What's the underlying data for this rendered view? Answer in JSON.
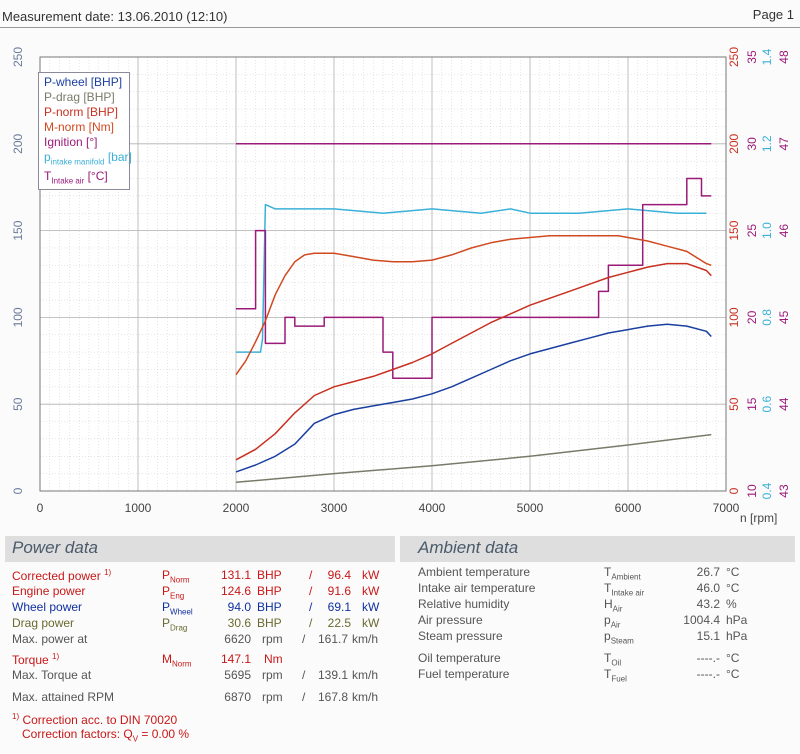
{
  "header": {
    "measurement_date": "Measurement date: 13.06.2010 (12:10)",
    "page": "Page 1"
  },
  "legend": {
    "p_wheel": "P-wheel [BHP]",
    "p_drag": "P-drag [BHP]",
    "p_norm": "P-norm [BHP]",
    "m_norm": "M-norm [Nm]",
    "ignition": "Ignition [°]",
    "intake_p_base": "p",
    "intake_p_sub": "intake manifold",
    "intake_p_unit": "[bar]",
    "intake_t_base": "T",
    "intake_t_sub": "Intake air",
    "intake_t_unit": "[°C]"
  },
  "colors": {
    "p_wheel": "#1a3fa0",
    "p_drag": "#7a7a6a",
    "p_norm": "#c83020",
    "m_norm": "#d04a20",
    "ignition": "#9a1a78",
    "intake_p": "#3ab0d8",
    "intake_t": "#9a1a78",
    "red_text": "#c81818"
  },
  "chart_data": {
    "type": "line",
    "x_label": "n [rpm]",
    "x_ticks": [
      "0",
      "1000",
      "2000",
      "3000",
      "4000",
      "5000",
      "6000",
      "7000"
    ],
    "xlim": [
      0,
      7000
    ],
    "left_axis": {
      "ticks": [
        "0",
        "50",
        "100",
        "150",
        "200",
        "250"
      ],
      "ylim": [
        0,
        250
      ]
    },
    "right_axes": [
      {
        "name": "M-norm [Nm]",
        "ticks": [
          "0",
          "50",
          "100",
          "150",
          "200",
          "250"
        ],
        "ylim": [
          0,
          250
        ]
      },
      {
        "name": "Ignition [°]",
        "ticks": [
          "10",
          "15",
          "20",
          "25",
          "30",
          "35"
        ],
        "ylim": [
          10,
          35
        ]
      },
      {
        "name": "p intake manifold [bar]",
        "ticks": [
          "0.4",
          "0.6",
          "0.8",
          "1.0",
          "1.2",
          "1.4"
        ],
        "ylim": [
          0.4,
          1.4
        ]
      },
      {
        "name": "T intake air [°C]",
        "ticks": [
          "43",
          "44",
          "45",
          "46",
          "47",
          "48"
        ],
        "ylim": [
          43,
          48
        ]
      }
    ],
    "grid": true,
    "legend_position": "top-left",
    "series": [
      {
        "name": "P-wheel [BHP]",
        "axis": "left",
        "x": [
          2000,
          2200,
          2400,
          2600,
          2800,
          3000,
          3200,
          3400,
          3600,
          3800,
          4000,
          4200,
          4400,
          4600,
          4800,
          5000,
          5200,
          5400,
          5600,
          5800,
          6000,
          6200,
          6400,
          6600,
          6800,
          6850
        ],
        "y": [
          11,
          15,
          20,
          27,
          39,
          44,
          47,
          49,
          51,
          53,
          56,
          60,
          65,
          70,
          75,
          79,
          82,
          85,
          88,
          91,
          93,
          95,
          96,
          95,
          92,
          89
        ]
      },
      {
        "name": "P-drag [BHP]",
        "axis": "left",
        "x": [
          2000,
          3000,
          4000,
          5000,
          6000,
          6850
        ],
        "y": [
          5,
          10,
          14.5,
          20,
          26.5,
          32.5
        ]
      },
      {
        "name": "P-norm [BHP]",
        "axis": "left",
        "x": [
          2000,
          2200,
          2400,
          2600,
          2800,
          3000,
          3200,
          3400,
          3600,
          3800,
          4000,
          4200,
          4400,
          4600,
          4800,
          5000,
          5200,
          5400,
          5600,
          5800,
          6000,
          6200,
          6400,
          6600,
          6800,
          6850
        ],
        "y": [
          18,
          24,
          33,
          45,
          55,
          60,
          63,
          66,
          70,
          74,
          79,
          85,
          91,
          97,
          102,
          107,
          111,
          115,
          119,
          123,
          126,
          129,
          131,
          131,
          127,
          124
        ]
      },
      {
        "name": "M-norm [Nm]",
        "axis": "right0",
        "x": [
          2000,
          2100,
          2200,
          2300,
          2400,
          2500,
          2600,
          2700,
          2800,
          2900,
          3000,
          3200,
          3400,
          3600,
          3800,
          4000,
          4200,
          4400,
          4600,
          4800,
          5000,
          5200,
          5400,
          5600,
          5800,
          5900,
          6000,
          6200,
          6400,
          6600,
          6800,
          6850
        ],
        "y": [
          67,
          75,
          86,
          98,
          113,
          124,
          132,
          136,
          137,
          137,
          137,
          135,
          133,
          132,
          132,
          133,
          136,
          140,
          143,
          145,
          146,
          147,
          147,
          147,
          147,
          147,
          146,
          144,
          141,
          138,
          131,
          130
        ]
      },
      {
        "name": "Ignition [°]",
        "axis": "right1",
        "x": [
          2000,
          2250,
          2250,
          2300,
          2300,
          2550,
          2550,
          2750,
          2750,
          3000,
          3000,
          3250,
          3250,
          3450,
          3450,
          3550,
          3550,
          3750,
          3750,
          3850,
          3850,
          3950,
          3950,
          4050,
          4050,
          5000,
          5000,
          5400,
          5400,
          5500,
          5500,
          5650,
          5650,
          5700,
          5700,
          5800,
          5800,
          5850,
          5850,
          5900,
          5900,
          6000,
          6000,
          6050,
          6050,
          6250,
          6250,
          6550,
          6550,
          6600,
          6600,
          6700,
          6700,
          6850
        ],
        "y": [
          30,
          30,
          30,
          30,
          30,
          30,
          30,
          30,
          30,
          30,
          30,
          30,
          30,
          30,
          30,
          30,
          30,
          30,
          30,
          30,
          30,
          30,
          30,
          30,
          30,
          30,
          30,
          30,
          30,
          30,
          30,
          30,
          30,
          30,
          30,
          30,
          30,
          30,
          30,
          30,
          30,
          30,
          30,
          30,
          30,
          30,
          30,
          30,
          30,
          30,
          30,
          30,
          30,
          30
        ]
      },
      {
        "name": "p intake manifold [bar]",
        "axis": "right2",
        "x": [
          2000,
          2250,
          2270,
          2300,
          2400,
          2600,
          3000,
          3500,
          4000,
          4500,
          4800,
          5000,
          5500,
          6000,
          6500,
          6800
        ],
        "y": [
          0.72,
          0.72,
          0.75,
          1.06,
          1.05,
          1.05,
          1.05,
          1.04,
          1.05,
          1.04,
          1.05,
          1.04,
          1.04,
          1.05,
          1.04,
          1.04
        ]
      },
      {
        "name": "T intake air [°C]",
        "axis": "right3",
        "x": [
          2000,
          2200,
          2200,
          2300,
          2300,
          2500,
          2500,
          2600,
          2600,
          2900,
          2900,
          3300,
          3300,
          3500,
          3500,
          3600,
          3600,
          3800,
          3800,
          4000,
          4000,
          5700,
          5700,
          5800,
          5800,
          6150,
          6150,
          6600,
          6600,
          6750,
          6750,
          6850
        ],
        "y": [
          45.1,
          45.1,
          46,
          46,
          44.7,
          44.7,
          45,
          45,
          44.9,
          44.9,
          45,
          45,
          45,
          45,
          44.6,
          44.6,
          44.3,
          44.3,
          44.3,
          44.3,
          45,
          45,
          45.3,
          45.3,
          45.6,
          45.6,
          46.3,
          46.3,
          46.6,
          46.6,
          46.4,
          46.4
        ]
      }
    ]
  },
  "power_data": {
    "title": "Power data",
    "corrected_power": {
      "label": "Corrected power",
      "note": "1)",
      "sym_base": "P",
      "sym_sub": "Norm",
      "bhp": "131.1",
      "u1": "BHP",
      "sep": "/",
      "kw": "96.4",
      "u2": "kW"
    },
    "engine_power": {
      "label": "Engine power",
      "sym_base": "P",
      "sym_sub": "Eng",
      "bhp": "124.6",
      "u1": "BHP",
      "sep": "/",
      "kw": "91.6",
      "u2": "kW"
    },
    "wheel_power": {
      "label": "Wheel power",
      "sym_base": "P",
      "sym_sub": "Wheel",
      "bhp": "94.0",
      "u1": "BHP",
      "sep": "/",
      "kw": "69.1",
      "u2": "kW"
    },
    "drag_power": {
      "label": "Drag power",
      "sym_base": "P",
      "sym_sub": "Drag",
      "bhp": "30.6",
      "u1": "BHP",
      "sep": "/",
      "kw": "22.5",
      "u2": "kW"
    },
    "max_power_at": {
      "label": "Max. power at",
      "rpm": "6620",
      "u1": "rpm",
      "sep": "/",
      "kmh": "161.7",
      "u2": "km/h"
    },
    "torque": {
      "label": "Torque",
      "note": "1)",
      "sym_base": "M",
      "sym_sub": "Norm",
      "value": "147.1",
      "unit": "Nm"
    },
    "max_torque_at": {
      "label": "Max. Torque at",
      "rpm": "5695",
      "u1": "rpm",
      "sep": "/",
      "kmh": "139.1",
      "u2": "km/h"
    },
    "max_rpm": {
      "label": "Max. attained RPM",
      "rpm": "6870",
      "u1": "rpm",
      "sep": "/",
      "kmh": "167.8",
      "u2": "km/h"
    },
    "footnote_mark": "1)",
    "footnote": "Correction acc. to DIN 70020",
    "correction_factors": "Correction factors: Q",
    "correction_sub": "V",
    "correction_value": "=   0.00 %"
  },
  "ambient_data": {
    "title": "Ambient data",
    "rows": [
      {
        "label": "Ambient temperature",
        "sym_base": "T",
        "sym_sub": "Ambient",
        "value": "26.7",
        "unit": "°C"
      },
      {
        "label": "Intake air temperature",
        "sym_base": "T",
        "sym_sub": "Intake air",
        "value": "46.0",
        "unit": "°C"
      },
      {
        "label": "Relative humidity",
        "sym_base": "H",
        "sym_sub": "Air",
        "value": "43.2",
        "unit": "%"
      },
      {
        "label": "Air pressure",
        "sym_base": "p",
        "sym_sub": "Air",
        "value": "1004.4",
        "unit": "hPa"
      },
      {
        "label": "Steam pressure",
        "sym_base": "p",
        "sym_sub": "Steam",
        "value": "15.1",
        "unit": "hPa"
      },
      {
        "label": "Oil temperature",
        "sym_base": "T",
        "sym_sub": "Oil",
        "value": "----.-",
        "unit": "°C"
      },
      {
        "label": "Fuel temperature",
        "sym_base": "T",
        "sym_sub": "Fuel",
        "value": "----.-",
        "unit": "°C"
      }
    ]
  }
}
